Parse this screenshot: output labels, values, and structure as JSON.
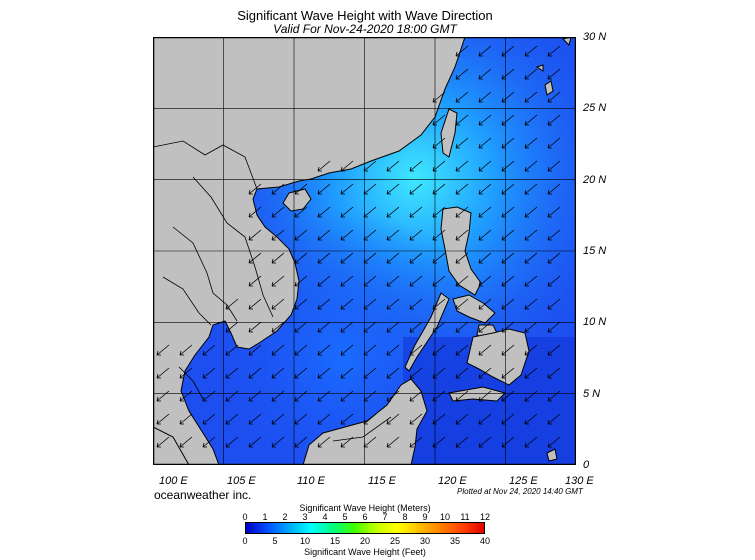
{
  "header": {
    "title": "Significant Wave Height with Wave Direction",
    "subtitle": "Valid For Nov-24-2020 18:00 GMT"
  },
  "map": {
    "region": "South China Sea",
    "background_ocean_color": "#1d4ef0",
    "land_color": "#c0c0c0",
    "arrow_color": "#000000",
    "latitude_labels": [
      "30 N",
      "25 N",
      "20 N",
      "15 N",
      "10 N",
      "5 N",
      "0"
    ],
    "longitude_labels": [
      "100 E",
      "105 E",
      "110 E",
      "115 E",
      "120 E",
      "125 E",
      "130 E"
    ],
    "wave_direction": "from northeast"
  },
  "footer": {
    "credit": "oceanweather inc.",
    "plotted": "Plotted at Nov 24, 2020 14:40 GMT"
  },
  "colorbar": {
    "meters_title": "Significant Wave Height (Meters)",
    "feet_title": "Significant Wave Height (Feet)",
    "meters_ticks": [
      "0",
      "1",
      "2",
      "3",
      "4",
      "5",
      "6",
      "7",
      "8",
      "9",
      "10",
      "11",
      "12"
    ],
    "feet_ticks": [
      "0",
      "5",
      "10",
      "15",
      "20",
      "25",
      "30",
      "35",
      "40"
    ],
    "colors": [
      "#0000c8",
      "#0050ff",
      "#00a8ff",
      "#00ffff",
      "#00ff80",
      "#40ff00",
      "#c0ff00",
      "#ffff00",
      "#ffc000",
      "#ff8000",
      "#ff4000",
      "#e00000"
    ]
  }
}
